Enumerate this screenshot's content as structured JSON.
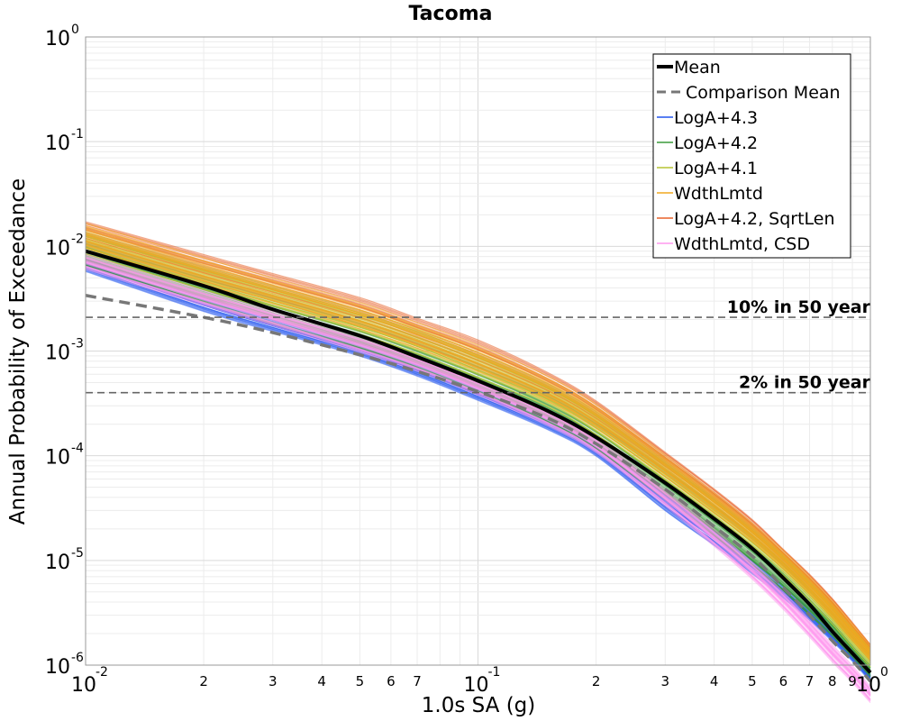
{
  "chart_data": {
    "type": "line",
    "title": "Tacoma",
    "xlabel": "1.0s SA (g)",
    "ylabel": "Annual Probability of Exceedance",
    "xscale": "log",
    "yscale": "log",
    "xlim": [
      0.01,
      1.0
    ],
    "ylim": [
      1e-06,
      1.0
    ],
    "grid": true,
    "legend_position": "top-right",
    "x_ticks_major": [
      {
        "value": 0.01,
        "base": "10",
        "exp": "-2"
      },
      {
        "value": 0.1,
        "base": "10",
        "exp": "-1"
      },
      {
        "value": 1.0,
        "base": "10",
        "exp": "0"
      }
    ],
    "x_ticks_minor": [
      {
        "value": 0.02,
        "label": "2"
      },
      {
        "value": 0.03,
        "label": "3"
      },
      {
        "value": 0.04,
        "label": "4"
      },
      {
        "value": 0.05,
        "label": "5"
      },
      {
        "value": 0.06,
        "label": "6"
      },
      {
        "value": 0.07,
        "label": "7"
      },
      {
        "value": 0.2,
        "label": "2"
      },
      {
        "value": 0.3,
        "label": "3"
      },
      {
        "value": 0.4,
        "label": "4"
      },
      {
        "value": 0.5,
        "label": "5"
      },
      {
        "value": 0.6,
        "label": "6"
      },
      {
        "value": 0.7,
        "label": "7"
      },
      {
        "value": 0.8,
        "label": "8"
      },
      {
        "value": 0.9,
        "label": "9"
      }
    ],
    "y_ticks_major": [
      {
        "value": 1.0,
        "base": "10",
        "exp": "0"
      },
      {
        "value": 0.1,
        "base": "10",
        "exp": "-1"
      },
      {
        "value": 0.01,
        "base": "10",
        "exp": "-2"
      },
      {
        "value": 0.001,
        "base": "10",
        "exp": "-3"
      },
      {
        "value": 0.0001,
        "base": "10",
        "exp": "-4"
      },
      {
        "value": 1e-05,
        "base": "10",
        "exp": "-5"
      },
      {
        "value": 1e-06,
        "base": "10",
        "exp": "-6"
      }
    ],
    "reference_lines": [
      {
        "label": "10% in 50 year",
        "y": 0.0021
      },
      {
        "label": "2% in 50 year",
        "y": 0.0004
      }
    ],
    "series": [
      {
        "name": "Mean",
        "color": "#000000",
        "style": "solid",
        "x": [
          0.01,
          0.02,
          0.03,
          0.05,
          0.07,
          0.1,
          0.15,
          0.2,
          0.3,
          0.4,
          0.5,
          0.6,
          0.7,
          0.8,
          0.9,
          1.0
        ],
        "y": [
          0.009,
          0.0042,
          0.0025,
          0.0014,
          0.00088,
          0.00052,
          0.00027,
          0.00015,
          5.5e-05,
          2.5e-05,
          1.3e-05,
          6.8e-06,
          3.8e-06,
          2.1e-06,
          1.3e-06,
          8.5e-07
        ]
      },
      {
        "name": "Comparison Mean",
        "color": "#777777",
        "style": "dashed",
        "x": [
          0.01,
          0.02,
          0.03,
          0.05,
          0.07,
          0.1,
          0.15,
          0.2,
          0.3,
          0.4,
          0.5,
          0.6,
          0.7,
          0.8,
          0.9,
          1.0
        ],
        "y": [
          0.0034,
          0.0021,
          0.0015,
          0.00092,
          0.00064,
          0.00041,
          0.00023,
          0.00013,
          4.8e-05,
          2.1e-05,
          1.1e-05,
          5.5e-06,
          3e-06,
          1.7e-06,
          1.1e-06,
          7e-07
        ]
      },
      {
        "name": "LogA+4.3",
        "color": "#2255ee",
        "style": "solid",
        "band": {
          "low": [
            0.0058,
            0.0024,
            0.00155,
            0.0009,
            0.00058,
            0.00034,
            0.00018,
            0.0001,
            3e-05,
            1.4e-05,
            7.5e-06,
            4.4e-06,
            2.7e-06,
            1.7e-06,
            1.1e-06,
            7e-07
          ],
          "high": [
            0.0075,
            0.0032,
            0.002,
            0.00115,
            0.00074,
            0.00044,
            0.00023,
            0.00013,
            4.2e-05,
            1.9e-05,
            1e-05,
            5.7e-06,
            3.4e-06,
            2.1e-06,
            1.3e-06,
            8.5e-07
          ]
        }
      },
      {
        "name": "LogA+4.2",
        "color": "#3a9a3a",
        "style": "solid",
        "band": {
          "low": [
            0.0065,
            0.0029,
            0.0018,
            0.00105,
            0.00068,
            0.0004,
            0.00021,
            0.000115,
            3.8e-05,
            1.7e-05,
            8.8e-06,
            5.1e-06,
            3e-06,
            1.9e-06,
            1.2e-06,
            7.8e-07
          ],
          "high": [
            0.0098,
            0.0043,
            0.0027,
            0.00155,
            0.001,
            0.0006,
            0.00031,
            0.00017,
            5.8e-05,
            2.6e-05,
            1.35e-05,
            7.4e-06,
            4.2e-06,
            2.5e-06,
            1.5e-06,
            9.7e-07
          ]
        }
      },
      {
        "name": "LogA+4.1",
        "color": "#b5c432",
        "style": "solid",
        "band": {
          "low": [
            0.0085,
            0.0039,
            0.0025,
            0.00145,
            0.00095,
            0.00056,
            0.0003,
            0.00016,
            5.5e-05,
            2.5e-05,
            1.3e-05,
            7.3e-06,
            4.2e-06,
            2.5e-06,
            1.5e-06,
            9.7e-07
          ],
          "high": [
            0.0135,
            0.0063,
            0.0041,
            0.0024,
            0.0016,
            0.00095,
            0.00048,
            0.00026,
            8.8e-05,
            3.9e-05,
            2e-05,
            1.1e-05,
            6.2e-06,
            3.6e-06,
            2.2e-06,
            1.4e-06
          ]
        }
      },
      {
        "name": "WdthLmtd",
        "color": "#f0a820",
        "style": "solid",
        "band": {
          "low": [
            0.0095,
            0.0043,
            0.0028,
            0.0016,
            0.00105,
            0.00063,
            0.00033,
            0.00018,
            6.2e-05,
            2.8e-05,
            1.5e-05,
            8.2e-06,
            4.7e-06,
            2.8e-06,
            1.7e-06,
            1.1e-06
          ],
          "high": [
            0.016,
            0.0075,
            0.0048,
            0.0028,
            0.0018,
            0.0011,
            0.00056,
            0.0003,
            9.8e-05,
            4.3e-05,
            2.2e-05,
            1.2e-05,
            6.8e-06,
            4e-06,
            2.4e-06,
            1.5e-06
          ]
        }
      },
      {
        "name": "LogA+4.2, SqrtLen",
        "color": "#e8622a",
        "style": "solid",
        "band": {
          "low": [
            0.01,
            0.0046,
            0.003,
            0.0017,
            0.0011,
            0.00066,
            0.00035,
            0.00019,
            6.8e-05,
            3.1e-05,
            1.6e-05,
            8.9e-06,
            5e-06,
            3e-06,
            1.8e-06,
            1.2e-06
          ],
          "high": [
            0.0175,
            0.0085,
            0.0056,
            0.0033,
            0.0021,
            0.0013,
            0.00064,
            0.00034,
            0.00011,
            4.9e-05,
            2.5e-05,
            1.3e-05,
            7.5e-06,
            4.4e-06,
            2.6e-06,
            1.6e-06
          ]
        }
      },
      {
        "name": "WdthLmtd, CSD",
        "color": "#ff99ee",
        "style": "solid",
        "band": {
          "low": [
            0.0062,
            0.0028,
            0.0018,
            0.001,
            0.00066,
            0.00039,
            0.0002,
            0.00011,
            3.4e-05,
            1.4e-05,
            6.8e-06,
            3.5e-06,
            1.9e-06,
            1.1e-06,
            7e-07,
            4.5e-07
          ],
          "high": [
            0.008,
            0.0036,
            0.0023,
            0.00132,
            0.00085,
            0.0005,
            0.00026,
            0.000142,
            4.5e-05,
            1.9e-05,
            9.2e-06,
            4.8e-06,
            2.6e-06,
            1.5e-06,
            9.5e-07,
            6e-07
          ]
        }
      }
    ],
    "band_x": [
      0.01,
      0.02,
      0.03,
      0.05,
      0.07,
      0.1,
      0.15,
      0.2,
      0.3,
      0.4,
      0.5,
      0.6,
      0.7,
      0.8,
      0.9,
      1.0
    ]
  }
}
